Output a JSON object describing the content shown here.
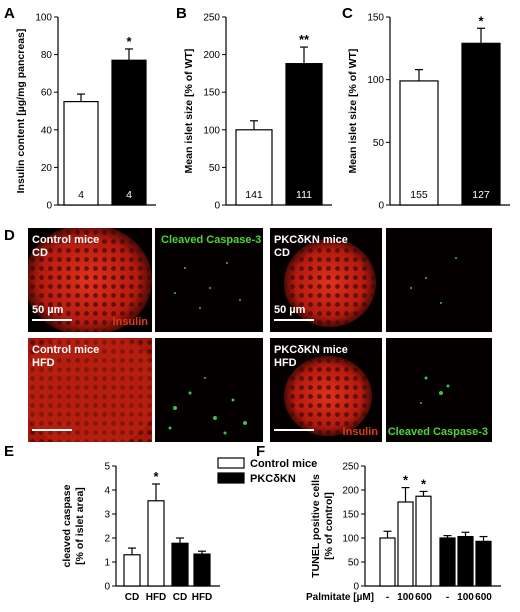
{
  "panels": {
    "A": "A",
    "B": "B",
    "C": "C",
    "D": "D",
    "E": "E",
    "F": "F"
  },
  "chart_data": [
    {
      "id": "A",
      "type": "bar",
      "ylabel": "Insulin content [µg/mg  pancreas]",
      "ylim": [
        0,
        100
      ],
      "yticks": [
        0,
        20,
        40,
        60,
        80,
        100
      ],
      "bars": [
        {
          "value": 55,
          "err": 4,
          "fill": "#ffffff",
          "n": "4",
          "sig": ""
        },
        {
          "value": 77,
          "err": 6,
          "fill": "#000000",
          "n": "4",
          "sig": "*"
        }
      ]
    },
    {
      "id": "B",
      "type": "bar",
      "ylabel": "Mean islet size [% of WT]",
      "ylim": [
        0,
        250
      ],
      "yticks": [
        0,
        50,
        100,
        150,
        200,
        250
      ],
      "bars": [
        {
          "value": 100,
          "err": 12,
          "fill": "#ffffff",
          "n": "141",
          "sig": ""
        },
        {
          "value": 188,
          "err": 22,
          "fill": "#000000",
          "n": "111",
          "sig": "**"
        }
      ]
    },
    {
      "id": "C",
      "type": "bar",
      "ylabel": "Mean islet size [% of WT]",
      "ylim": [
        0,
        150
      ],
      "yticks": [
        0,
        50,
        100,
        150
      ],
      "bars": [
        {
          "value": 99,
          "err": 9,
          "fill": "#ffffff",
          "n": "155",
          "sig": ""
        },
        {
          "value": 129,
          "err": 12,
          "fill": "#000000",
          "n": "127",
          "sig": "*"
        }
      ]
    },
    {
      "id": "E",
      "type": "bar",
      "ylabel": "cleaved caspase",
      "ylabel2": "[% of islet area]",
      "ylim": [
        0,
        5
      ],
      "yticks": [
        0,
        1,
        2,
        3,
        4,
        5
      ],
      "categories": [
        "CD",
        "HFD",
        "CD",
        "HFD"
      ],
      "legend": [
        "Control mice",
        "PKCδKN"
      ],
      "bars": [
        {
          "value": 1.3,
          "err": 0.28,
          "fill": "#ffffff",
          "sig": ""
        },
        {
          "value": 3.55,
          "err": 0.7,
          "fill": "#ffffff",
          "sig": "*"
        },
        {
          "value": 1.78,
          "err": 0.22,
          "fill": "#000000",
          "sig": ""
        },
        {
          "value": 1.33,
          "err": 0.12,
          "fill": "#000000",
          "sig": ""
        }
      ]
    },
    {
      "id": "F",
      "type": "bar",
      "ylabel": "TUNEL positive cells",
      "ylabel2": "[% of control]",
      "ylim": [
        0,
        250
      ],
      "yticks": [
        0,
        50,
        100,
        150,
        200,
        250
      ],
      "xprefix": "Palmitate [µM]",
      "categories": [
        "-",
        "100",
        "600",
        "-",
        "100",
        "600"
      ],
      "bars": [
        {
          "value": 100,
          "err": 14,
          "fill": "#ffffff",
          "sig": ""
        },
        {
          "value": 175,
          "err": 30,
          "fill": "#ffffff",
          "sig": "*"
        },
        {
          "value": 187,
          "err": 10,
          "fill": "#ffffff",
          "sig": "*"
        },
        {
          "value": 100,
          "err": 5,
          "fill": "#000000",
          "sig": ""
        },
        {
          "value": 103,
          "err": 9,
          "fill": "#000000",
          "sig": ""
        },
        {
          "value": 93,
          "err": 10,
          "fill": "#000000",
          "sig": ""
        }
      ]
    }
  ],
  "micrographs": {
    "m1": {
      "title1": "Control mice",
      "title2": "CD",
      "scale": "50  µm",
      "stain": "Insulin"
    },
    "m2": {
      "title1": "Cleaved Caspase-3"
    },
    "m3": {
      "title1": "PKCδKN mice",
      "title2": "CD",
      "scale": "50  µm"
    },
    "m5": {
      "title1": "Control mice",
      "title2": "HFD"
    },
    "m7": {
      "title1": "PKCδKN mice",
      "title2": "HFD",
      "stain": "Insulin"
    },
    "m8": {
      "stain": "Cleaved Caspase-3"
    }
  }
}
